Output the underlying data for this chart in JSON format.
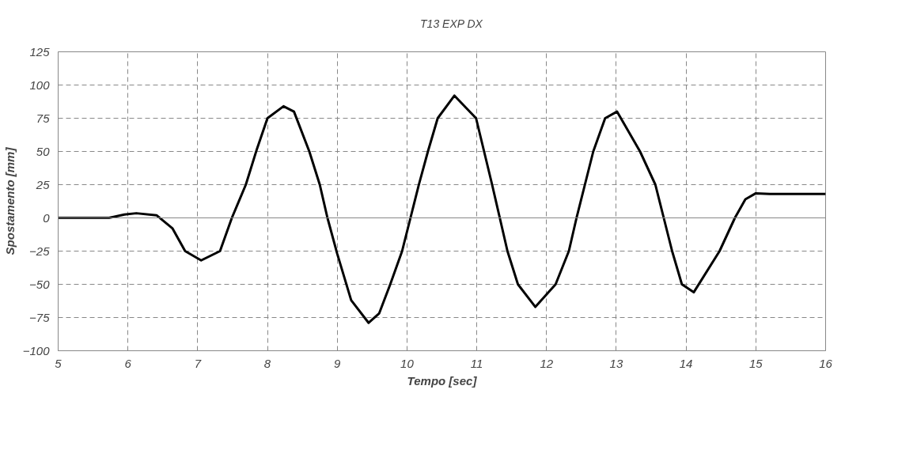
{
  "chart_data": {
    "type": "line",
    "xlabel": "Tempo [sec]",
    "ylabel": "Spostamento [mm]",
    "xlim": [
      5,
      16
    ],
    "xticks": [
      5,
      6,
      7,
      8,
      9,
      10,
      11,
      12,
      13,
      14,
      15,
      16
    ],
    "ylim": [
      -100,
      125
    ],
    "yticks": [
      -100,
      -75,
      -50,
      -25,
      0,
      25,
      50,
      75,
      100,
      125
    ],
    "grid": true,
    "legend": "top",
    "marker": "none",
    "line_style": "solid",
    "series": [
      {
        "name": "T13 EXP DX",
        "color": "#000000",
        "x": [
          5,
          5.73,
          5.95,
          6.12,
          6.41,
          6.64,
          6.82,
          7.05,
          7.32,
          7.49,
          7.69,
          7.85,
          8.0,
          8.23,
          8.38,
          8.6,
          8.75,
          8.86,
          9.0,
          9.2,
          9.45,
          9.6,
          9.76,
          9.93,
          10.05,
          10.17,
          10.3,
          10.44,
          10.68,
          10.99,
          11.22,
          11.33,
          11.44,
          11.59,
          11.84,
          12.13,
          12.32,
          12.43,
          12.55,
          12.67,
          12.84,
          13.01,
          13.34,
          13.56,
          13.68,
          13.8,
          13.94,
          14.11,
          14.48,
          14.7,
          14.85,
          15.0,
          15.2,
          16
        ],
        "values": [
          0,
          0,
          2.5,
          3.5,
          2,
          -8,
          -25,
          -32,
          -25,
          0,
          25,
          52,
          75,
          84,
          80,
          50,
          25,
          0,
          -27,
          -62,
          -79,
          -72,
          -50,
          -25,
          0,
          25,
          50,
          75,
          92,
          75,
          25,
          0,
          -25,
          -50,
          -67,
          -50,
          -25,
          0,
          25,
          50,
          75,
          80,
          50,
          25,
          0,
          -25,
          -50,
          -56,
          -25,
          0,
          14,
          18.5,
          18,
          18
        ]
      }
    ]
  }
}
